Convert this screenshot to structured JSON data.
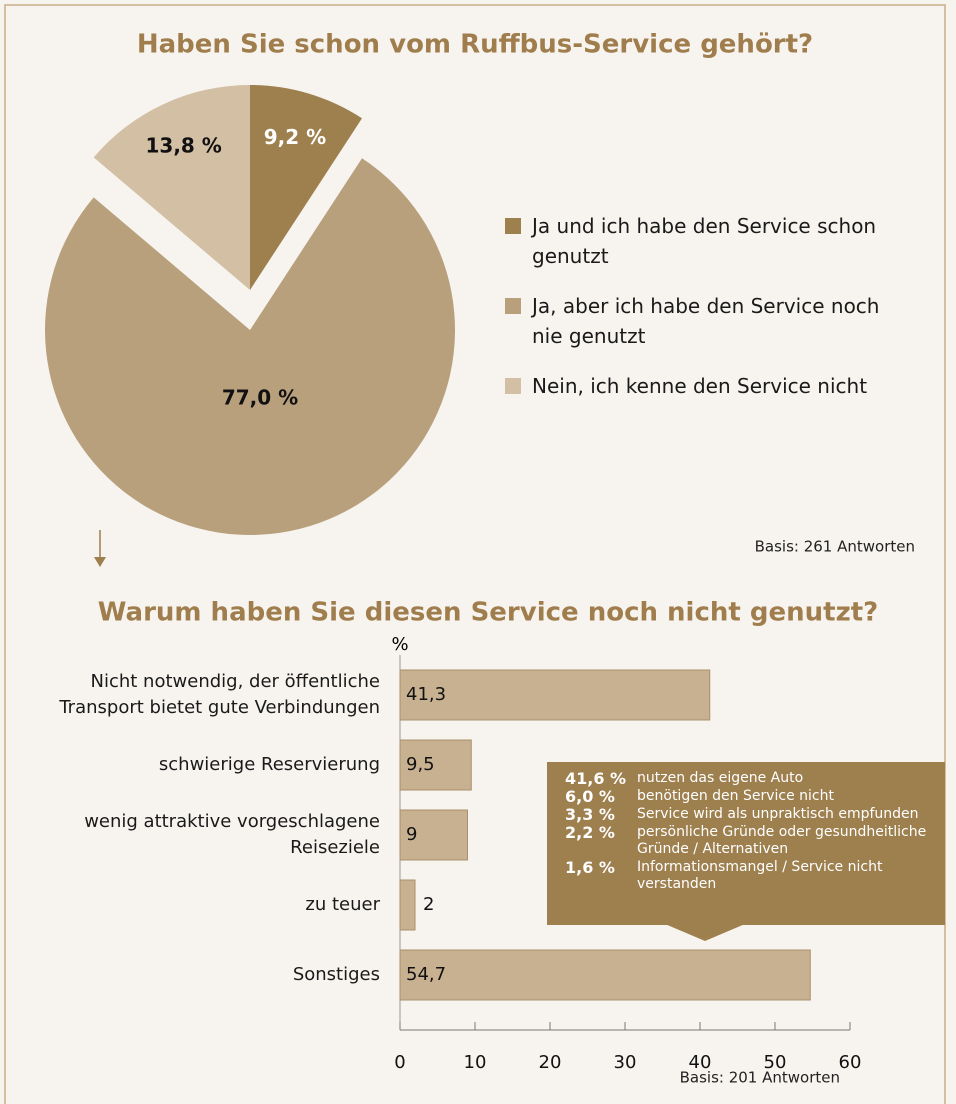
{
  "chart_data": [
    {
      "type": "pie",
      "title": "Haben Sie schon vom Ruffbus-Service gehört?",
      "categories": [
        "Ja und ich habe den Service schon genutzt",
        "Ja, aber ich habe den Service noch nie genutzt",
        "Nein, ich kenne den Service nicht"
      ],
      "values": [
        9.2,
        77.0,
        13.8
      ],
      "value_labels": [
        "9,2 %",
        "77,0 %",
        "13,8 %"
      ],
      "colors": [
        "#9e7f4e",
        "#b9a07c",
        "#d2bfa4"
      ],
      "note": "Basis: 261 Antworten"
    },
    {
      "type": "bar",
      "orientation": "horizontal",
      "title": "Warum haben Sie diesen Service noch nicht genutzt?",
      "unit_label": "%",
      "categories": [
        "Nicht notwendig, der öffentliche Transport bietet gute Verbindungen",
        "schwierige Reservierung",
        "wenig attraktive vorgeschlagene Reiseziele",
        "zu teuer",
        "Sonstiges"
      ],
      "values": [
        41.3,
        9.5,
        9,
        2,
        54.7
      ],
      "value_labels": [
        "41,3",
        "9,5",
        "9",
        "2",
        "54,7"
      ],
      "color": "#c8b191",
      "xlim": [
        0,
        60
      ],
      "xticks": [
        0,
        10,
        20,
        30,
        40,
        50,
        60
      ],
      "annotation": [
        {
          "value": "41,6 %",
          "text": "nutzen das eigene Auto"
        },
        {
          "value": "6,0 %",
          "text": "benötigen den Service nicht"
        },
        {
          "value": "3,3 %",
          "text": "Service wird als unpraktisch empfunden"
        },
        {
          "value": "2,2 %",
          "text": "persönliche Gründe oder gesundheitliche Gründe / Alternativen"
        },
        {
          "value": "1,6 %",
          "text": "Informationsmangel / Service nicht verstanden"
        }
      ],
      "note": "Basis: 201 Antworten"
    }
  ]
}
